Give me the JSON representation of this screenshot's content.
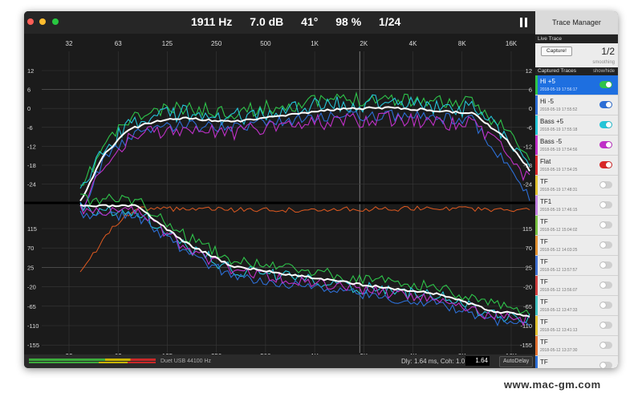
{
  "window": {
    "readouts": [
      "1911 Hz",
      "7.0 dB",
      "41°",
      "98 %",
      "1/24"
    ],
    "traffic_colors": [
      "#ff5f57",
      "#febc2e",
      "#28c840"
    ]
  },
  "plot": {
    "top_y_labels": [
      "12",
      "6",
      "0",
      "-6",
      "-12",
      "-18",
      "-24"
    ],
    "top_y_labels_right": [
      "12",
      "6",
      "0",
      "-6",
      "-12",
      "-18",
      "-24"
    ],
    "bottom_y_labels_left": [
      "115",
      "70",
      "25",
      "-20",
      "-65",
      "-110",
      "-155"
    ],
    "bottom_y_labels_right": [
      "115",
      "70",
      "25",
      "-20",
      "-65",
      "-110",
      "-155"
    ],
    "x_labels": [
      "32",
      "63",
      "125",
      "250",
      "500",
      "1K",
      "2K",
      "4K",
      "8K",
      "16K"
    ]
  },
  "status": {
    "device": "Duet USB 44100 Hz",
    "delay_text": "Dly: 1.64 ms, Coh: 1.0",
    "delay_value": "1.64",
    "autodelay": "AutoDelay"
  },
  "sidebar": {
    "title": "Trace Manager",
    "live_header": "Live Trace",
    "capture_label": "Capture!",
    "ratio": "1/2",
    "smoothing": "smoothing",
    "captured_header": "Captured Traces",
    "showhide": "show/hide",
    "traces": [
      {
        "name": "Hi +5",
        "date": "2018-05-19 17:56:17",
        "color": "#2ec44a",
        "on": true,
        "selected": true
      },
      {
        "name": "Hi -5",
        "date": "2018-05-19 17:55:52",
        "color": "#2d6fd6",
        "on": true,
        "selected": false
      },
      {
        "name": "Bass +5",
        "date": "2018-05-19 17:55:18",
        "color": "#25c5d8",
        "on": true,
        "selected": false
      },
      {
        "name": "Bass -5",
        "date": "2018-05-19 17:54:56",
        "color": "#c030c8",
        "on": true,
        "selected": false
      },
      {
        "name": "Flat",
        "date": "2018-05-19 17:54:25",
        "color": "#d82828",
        "on": true,
        "selected": false
      },
      {
        "name": "TF",
        "date": "2018-05-19 17:48:31",
        "color": "#e0c030",
        "on": false,
        "selected": false
      },
      {
        "name": "TF1",
        "date": "2018-05-19 17:46:15",
        "color": "#c080e0",
        "on": false,
        "selected": false
      },
      {
        "name": "TF",
        "date": "2018-05-12 15:04:02",
        "color": "#78c040",
        "on": false,
        "selected": false
      },
      {
        "name": "TF",
        "date": "2018-05-12 14:03:25",
        "color": "#e09030",
        "on": false,
        "selected": false
      },
      {
        "name": "TF",
        "date": "2018-05-12 13:57:57",
        "color": "#4070d0",
        "on": false,
        "selected": false
      },
      {
        "name": "TF",
        "date": "2018-05-12 13:56:07",
        "color": "#d04040",
        "on": false,
        "selected": false
      },
      {
        "name": "TF",
        "date": "2018-05-12 13:47:33",
        "color": "#40c0c0",
        "on": false,
        "selected": false
      },
      {
        "name": "TF",
        "date": "2018-05-12 13:41:13",
        "color": "#e0c030",
        "on": false,
        "selected": false
      },
      {
        "name": "TF",
        "date": "2018-05-12 13:37:30",
        "color": "#e07030",
        "on": false,
        "selected": false
      },
      {
        "name": "TF",
        "date": "",
        "color": "#2d6fd6",
        "on": false,
        "selected": false
      }
    ]
  },
  "watermark": "www.mac-gm.com"
}
